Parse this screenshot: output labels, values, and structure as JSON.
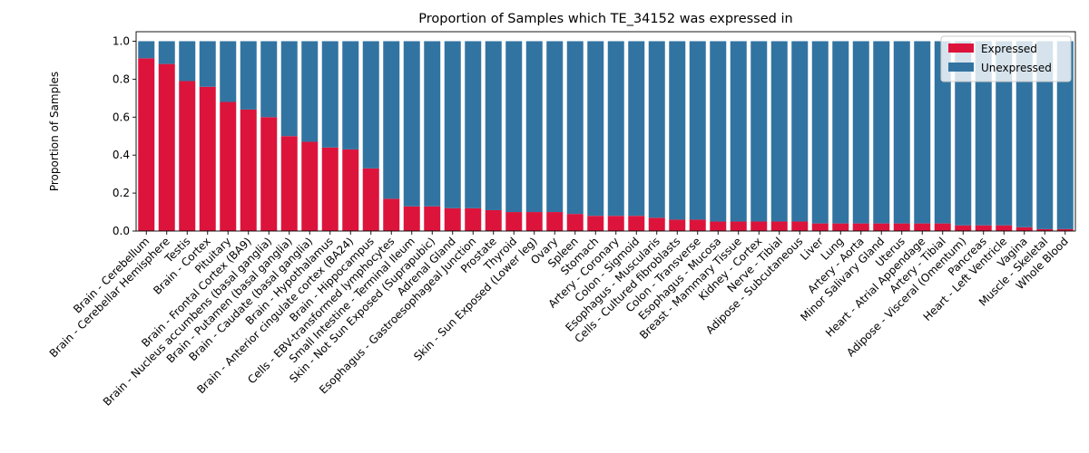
{
  "chart_data": {
    "type": "bar",
    "stacked": true,
    "title": "Proportion of Samples which TE_34152 was expressed in",
    "xlabel": "",
    "ylabel": "Proportion of Samples",
    "ylim": [
      0,
      1.05
    ],
    "yticks": [
      0.0,
      0.2,
      0.4,
      0.6,
      0.8,
      1.0
    ],
    "ytick_labels": [
      "0.0",
      "0.2",
      "0.4",
      "0.6",
      "0.8",
      "1.0"
    ],
    "legend_position": "top-right",
    "grid": false,
    "categories": [
      "Brain - Cerebellum",
      "Brain - Cerebellar Hemisphere",
      "Testis",
      "Brain - Cortex",
      "Pituitary",
      "Brain - Frontal Cortex (BA9)",
      "Brain - Nucleus accumbens (basal ganglia)",
      "Brain - Putamen (basal ganglia)",
      "Brain - Caudate (basal ganglia)",
      "Brain - Hypothalamus",
      "Brain - Anterior cingulate cortex (BA24)",
      "Brain - Hippocampus",
      "Cells - EBV-transformed lymphocytes",
      "Small Intestine - Terminal Ileum",
      "Skin - Not Sun Exposed (Suprapubic)",
      "Adrenal Gland",
      "Esophagus - Gastroesophageal Junction",
      "Prostate",
      "Thyroid",
      "Skin - Sun Exposed (Lower leg)",
      "Ovary",
      "Spleen",
      "Stomach",
      "Artery - Coronary",
      "Colon - Sigmoid",
      "Esophagus - Muscularis",
      "Cells - Cultured fibroblasts",
      "Colon - Transverse",
      "Esophagus - Mucosa",
      "Breast - Mammary Tissue",
      "Kidney - Cortex",
      "Nerve - Tibial",
      "Adipose - Subcutaneous",
      "Liver",
      "Lung",
      "Artery - Aorta",
      "Minor Salivary Gland",
      "Uterus",
      "Heart - Atrial Appendage",
      "Artery - Tibial",
      "Adipose - Visceral (Omentum)",
      "Pancreas",
      "Heart - Left Ventricle",
      "Vagina",
      "Muscle - Skeletal",
      "Whole Blood"
    ],
    "series": [
      {
        "name": "Expressed",
        "color": "#dc143c",
        "values": [
          0.91,
          0.88,
          0.79,
          0.76,
          0.68,
          0.64,
          0.6,
          0.5,
          0.47,
          0.44,
          0.43,
          0.33,
          0.17,
          0.13,
          0.13,
          0.12,
          0.12,
          0.11,
          0.1,
          0.1,
          0.1,
          0.09,
          0.08,
          0.08,
          0.08,
          0.07,
          0.06,
          0.06,
          0.05,
          0.05,
          0.05,
          0.05,
          0.05,
          0.04,
          0.04,
          0.04,
          0.04,
          0.04,
          0.04,
          0.04,
          0.03,
          0.03,
          0.03,
          0.02,
          0.01,
          0.01
        ]
      },
      {
        "name": "Unexpressed",
        "color": "#3274a1",
        "values": [
          0.09,
          0.12,
          0.21,
          0.24,
          0.32,
          0.36,
          0.4,
          0.5,
          0.53,
          0.56,
          0.57,
          0.67,
          0.83,
          0.87,
          0.87,
          0.88,
          0.88,
          0.89,
          0.9,
          0.9,
          0.9,
          0.91,
          0.92,
          0.92,
          0.92,
          0.93,
          0.94,
          0.94,
          0.95,
          0.95,
          0.95,
          0.95,
          0.95,
          0.96,
          0.96,
          0.96,
          0.96,
          0.96,
          0.96,
          0.96,
          0.97,
          0.97,
          0.97,
          0.98,
          0.99,
          0.99
        ]
      }
    ]
  }
}
